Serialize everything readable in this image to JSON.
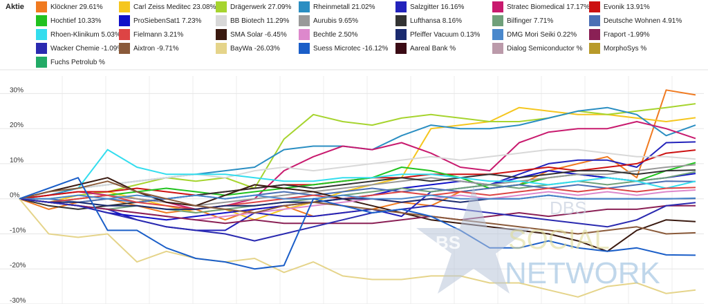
{
  "legend_title": "Aktie",
  "chart_data": {
    "type": "line",
    "ylim": [
      -30,
      35
    ],
    "yticks": [
      "30%",
      "20%",
      "10%",
      "0%",
      "-10%",
      "-20%",
      "-30%"
    ],
    "ytick_values": [
      30,
      20,
      10,
      0,
      -10,
      -20,
      -30
    ],
    "grid": true,
    "legend_position": "top",
    "series": [
      {
        "name": "Klöckner",
        "value": "29.61%",
        "color": "#f07a20",
        "values": [
          0,
          -3,
          -1,
          0,
          -2,
          -4,
          -3,
          -6,
          -3,
          -2,
          -5,
          -4,
          -3,
          -1,
          -2,
          2,
          3,
          4,
          8,
          10,
          12,
          6,
          31,
          29.6
        ]
      },
      {
        "name": "Carl Zeiss Meditec",
        "value": "23.08%",
        "color": "#f5c61e",
        "values": [
          0,
          -1,
          1,
          2,
          0,
          -2,
          -4,
          -3,
          -6,
          -3,
          -1,
          2,
          4,
          6,
          20,
          21,
          22,
          26,
          25,
          24,
          24,
          23,
          22,
          23.1
        ]
      },
      {
        "name": "Drägerwerk",
        "value": "27.09%",
        "color": "#a6d42e",
        "values": [
          0,
          0,
          1,
          2,
          4,
          6,
          5,
          6,
          3,
          17,
          24,
          22,
          21,
          23,
          24,
          23,
          22,
          22,
          23,
          25,
          24,
          25,
          26,
          27.1
        ]
      },
      {
        "name": "Rheinmetall",
        "value": "21.02%",
        "color": "#2a8ec2",
        "values": [
          0,
          1,
          3,
          4,
          5,
          6,
          7,
          8,
          9,
          14,
          15,
          15,
          14,
          18,
          21,
          20,
          20,
          21,
          23,
          25,
          26,
          24,
          18,
          21
        ]
      },
      {
        "name": "Salzgitter",
        "value": "16.16%",
        "color": "#2222bb",
        "values": [
          0,
          -1,
          -2,
          -3,
          -6,
          -8,
          -9,
          -9,
          -4,
          -5,
          -5,
          -4,
          -3,
          -5,
          2,
          3,
          4,
          7,
          10,
          11,
          11,
          9,
          16,
          16.2
        ]
      },
      {
        "name": "Stratec Biomedical",
        "value": "17.17%",
        "color": "#c81a6e",
        "values": [
          0,
          1,
          2,
          1,
          0,
          -1,
          -3,
          -2,
          0,
          8,
          12,
          15,
          14,
          16,
          13,
          9,
          8,
          16,
          19,
          20,
          20,
          22,
          20,
          17.2
        ]
      },
      {
        "name": "Evonik",
        "value": "13.91%",
        "color": "#cc1111",
        "values": [
          0,
          1,
          2,
          2,
          3,
          2,
          1,
          2,
          3,
          4,
          4,
          5,
          6,
          6,
          7,
          7,
          7,
          8,
          9,
          8,
          9,
          10,
          13,
          13.9
        ]
      },
      {
        "name": "Hochtief",
        "value": "10.33%",
        "color": "#21c21f",
        "values": [
          0,
          -1,
          0,
          1,
          2,
          3,
          2,
          1,
          2,
          3,
          4,
          5,
          6,
          9,
          8,
          6,
          3,
          4,
          6,
          7,
          6,
          5,
          8,
          10.3
        ]
      },
      {
        "name": "ProSiebenSat1",
        "value": "7.23%",
        "color": "#1010c8",
        "values": [
          0,
          -1,
          -2,
          -4,
          -5,
          -6,
          -5,
          -4,
          -3,
          -2,
          -1,
          0,
          1,
          3,
          4,
          5,
          4,
          6,
          8,
          7,
          6,
          5,
          6,
          7.2
        ]
      },
      {
        "name": "BB Biotech",
        "value": "11.29%",
        "color": "#d8d8d8",
        "values": [
          0,
          2,
          3,
          4,
          5,
          6,
          7,
          6,
          8,
          9,
          8,
          9,
          10,
          11,
          12,
          11,
          12,
          13,
          14,
          14,
          13,
          12,
          12,
          11.3
        ]
      },
      {
        "name": "Aurubis",
        "value": "9.65%",
        "color": "#999999",
        "values": [
          0,
          -1,
          0,
          1,
          0,
          -1,
          -2,
          -1,
          0,
          1,
          2,
          3,
          4,
          5,
          6,
          5,
          4,
          5,
          6,
          7,
          7,
          8,
          9,
          9.7
        ]
      },
      {
        "name": "Lufthansa",
        "value": "8.16%",
        "color": "#333333",
        "values": [
          0,
          -2,
          -3,
          -2,
          -1,
          0,
          1,
          2,
          3,
          4,
          3,
          4,
          5,
          6,
          5,
          6,
          7,
          6,
          7,
          8,
          8,
          7,
          8,
          8.2
        ]
      },
      {
        "name": "Bilfinger",
        "value": "7.71%",
        "color": "#6fa07a",
        "values": [
          0,
          -1,
          -2,
          -3,
          -2,
          -3,
          -4,
          -3,
          -2,
          -1,
          0,
          1,
          2,
          3,
          2,
          3,
          4,
          3,
          4,
          5,
          4,
          5,
          6,
          7.7
        ]
      },
      {
        "name": "Deutsche Wohnen",
        "value": "4.91%",
        "color": "#4a6fb5",
        "values": [
          0,
          0,
          -1,
          0,
          -1,
          0,
          1,
          0,
          1,
          2,
          1,
          2,
          3,
          2,
          3,
          2,
          3,
          4,
          3,
          4,
          3,
          4,
          5,
          4.9
        ]
      },
      {
        "name": "Rhoen-Klinikum",
        "value": "5.03%",
        "color": "#33ddee",
        "values": [
          0,
          2,
          3,
          14,
          9,
          7,
          7,
          7,
          6,
          5,
          5,
          6,
          6,
          7,
          7,
          6,
          5,
          5,
          4,
          5,
          6,
          5,
          3,
          5
        ]
      },
      {
        "name": "Fielmann",
        "value": "3.21%",
        "color": "#dd4444",
        "values": [
          0,
          -1,
          0,
          1,
          -1,
          -2,
          -3,
          -2,
          -1,
          0,
          1,
          0,
          1,
          2,
          1,
          2,
          1,
          2,
          3,
          2,
          3,
          2,
          3,
          3.2
        ]
      },
      {
        "name": "SMA Solar",
        "value": "-6.45%",
        "color": "#3a1a10",
        "values": [
          0,
          2,
          4,
          6,
          2,
          -1,
          -2,
          1,
          4,
          3,
          2,
          0,
          -2,
          -4,
          -6,
          -7,
          -8,
          -9,
          -10,
          -12,
          -15,
          -9,
          -6,
          -6.5
        ]
      },
      {
        "name": "Bechtle",
        "value": "2.50%",
        "color": "#dd88cc",
        "values": [
          0,
          -1,
          -2,
          -3,
          -4,
          -5,
          -6,
          -5,
          -4,
          -3,
          -2,
          -1,
          0,
          -1,
          0,
          1,
          0,
          1,
          2,
          1,
          2,
          1,
          2,
          2.5
        ]
      },
      {
        "name": "Pfeiffer Vacuum",
        "value": "0.13%",
        "color": "#1a2a6e",
        "values": [
          0,
          -1,
          -1,
          -2,
          -2,
          -3,
          -3,
          -2,
          -2,
          -1,
          -1,
          0,
          0,
          -1,
          0,
          -1,
          0,
          0,
          1,
          0,
          0,
          0,
          0,
          0.1
        ]
      },
      {
        "name": "DMG Mori Seiki",
        "value": "0.22%",
        "color": "#4a88cc",
        "values": [
          0,
          0,
          1,
          0,
          1,
          0,
          1,
          0,
          1,
          0,
          0,
          1,
          0,
          0,
          1,
          0,
          0,
          0,
          1,
          0,
          0,
          0,
          0,
          0.2
        ]
      },
      {
        "name": "Fraport",
        "value": "-1.99%",
        "color": "#8a2055",
        "values": [
          0,
          -1,
          -2,
          -3,
          -4,
          -5,
          -6,
          -7,
          -6,
          -7,
          -7,
          -7,
          -7,
          -6,
          -5,
          -6,
          -5,
          -4,
          -5,
          -4,
          -3,
          -3,
          -2,
          -2
        ]
      },
      {
        "name": "Wacker Chemie",
        "value": "-1.09%",
        "color": "#2a2ab0",
        "values": [
          0,
          -1,
          -2,
          -4,
          -6,
          -8,
          -9,
          -10,
          -12,
          -10,
          -8,
          -6,
          -4,
          -3,
          -2,
          -3,
          -4,
          -5,
          -6,
          -7,
          -8,
          -6,
          -2,
          -1.1
        ]
      },
      {
        "name": "Aixtron",
        "value": "-9.71%",
        "color": "#8a5a3a",
        "values": [
          0,
          2,
          3,
          5,
          2,
          0,
          -2,
          -3,
          -4,
          -2,
          -1,
          -2,
          -3,
          -4,
          -5,
          -6,
          -7,
          -8,
          -9,
          -10,
          -9,
          -8,
          -10,
          -9.7
        ]
      },
      {
        "name": "BayWa",
        "value": "-26.03%",
        "color": "#e5d48a",
        "values": [
          0,
          -10,
          -11,
          -10,
          -18,
          -15,
          -17,
          -18,
          -17,
          -21,
          -18,
          -22,
          -23,
          -23,
          -22,
          -22,
          -24,
          -24,
          -26,
          -28,
          -25,
          -24,
          -27,
          -26
        ]
      },
      {
        "name": "Suess Microtec",
        "value": "-16.12%",
        "color": "#1a5ec8",
        "values": [
          0,
          3,
          6,
          -9,
          -9,
          -14,
          -17,
          -18,
          -20,
          -19,
          0,
          -2,
          -4,
          -3,
          -5,
          -9,
          -14,
          -14,
          -12,
          -14,
          -15,
          -14,
          -16,
          -16.1
        ]
      },
      {
        "name": "Aareal Bank",
        "value": "%",
        "color": "#3a0a14",
        "values": []
      },
      {
        "name": "Dialog Semiconductor",
        "value": "%",
        "color": "#bb9aaa",
        "values": []
      },
      {
        "name": "MorphoSys",
        "value": "%",
        "color": "#b89a2a",
        "values": []
      },
      {
        "name": "Fuchs Petrolub",
        "value": "%",
        "color": "#22aa66",
        "values": []
      }
    ]
  },
  "watermark_text_top": "DBS",
  "watermark_text_mid": "SOCIAL",
  "watermark_text_bottom": "NETWORK",
  "watermark_badge": "BS"
}
